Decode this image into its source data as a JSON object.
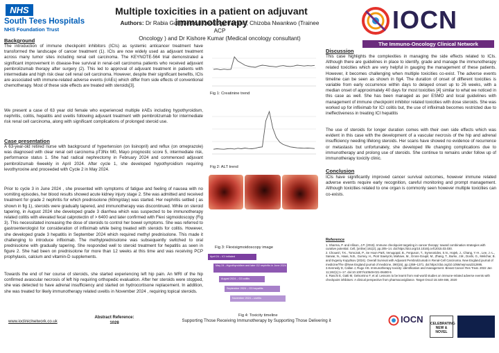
{
  "header": {
    "nhs_logo": "NHS",
    "org_name": "South Tees Hospitals",
    "org_sub": "NHS Foundation Trust",
    "title": "Multiple toxicities in a patient on adjuvant immunotherapy",
    "authors_label": "Authors:",
    "authors_line1": " Dr Rabia Gul (Medical oncology trainee),  Chizoba Nwankwo  (Trainee ACP",
    "authors_line2": "Oncology ) and Dr Kishore Kumar (Medical oncology consultant)",
    "iocn_word": "IOCN",
    "iocn_tagline": "The Immuno-Oncology Clinical Network"
  },
  "background": {
    "heading": "Background",
    "para1": "The introduction of immune checkpoint inhibitors (ICIs) as systemic anticancer treatment have transformed the landscape of cancer treatment (1). ICIs are now widely used as adjuvant treatment across many tumor sites including renal cell carcinoma. The KEYNOTE-564 trial demonstrated a significant improvement in disease-free survival in renal-cell carcinoma patients who received adjuvant pembrolizumab therapy after surgery (2). This led to approval of adjuvant treatment in patients with intermediate and high risk clear cell renal cell carcinoma. However, despite their significant benefits, ICIs are associated with immune-related adverse events (irAEs) which differ from side effects of conventional chemotherapy. Most of these side effects are treated with steroids[3].",
    "para2": "We present a case of 63 year old female who experienced multiple irAEs including hypothyroidism, nephritis, colitis, hepatitis and uveitis following adjuvant treatment with pembrolizumab for intermediate risk renal cell carcinoma, along with significant complications of prolonged steroid use."
  },
  "case": {
    "heading": "Case presentation",
    "para1": "A 63-year-old retired nurse with background of hypertension (on lisinopril) and reflux (on omeprazole) was diagnosed with clear renal cell carcinoma pT3Nx M0, Mayo prognostic score 5, intermediate risk, performance status 1. She had  radical nephrectomy in February 2024 and commenced  adjuvant pembrolizumab 6weekly in  April 2024. After cycle 1,  she developed hypothyroidism requiring levothyroxine and proceeded with Cycle 2 in May 2024.",
    "para2": "Prior to cycle 3 in June 2024 , she presented with symptoms of fatigue and feeling of nausea with no  vomiting episodes, her blood results  showed acute kidney injury stage 2. She was admitted and received treatment for grade 2 nephritis for which prednisolone (60mg/day) was started. Her nephritis settled ( as shown in fig 1), steroids were gradually tapered, and immunotherapy was discontinued.  While on steroid tapering, in August 2024 she developed grade 3 diarrhea which was suspected  to be immunotherapy related colitis with elevated fecal calprotectin of > 6400 and later confirmed with Flexi sigmoidoscopy  (Fig 3). This necessitated increasing the dose of steroids to control her bowel symptoms. She was referred to gastroenterologist for consideration of  infliximab while being treated with steroids  for colitis. However, she developed grade 3  hepatitis in September 2024 which required methyl prednisolone. This made it challenging to introduce infliximab. The methylprednisolone  was subsequently switched to oral prednisolone with gradually tapering. She responded well to steroid treatment for hepatitis as seen in figure 2.  She had been on prednisolone for more than 12 weeks at this time and was receiving PCP prophylaxis, calcium and vitamin-D supplements.",
    "para3": "Towards the end of her course of steroids, she started experiencing left hip pain. An  MRI of the hip confirmed avascular necrosis of left hip requiring orthopedic evaluation.  After her steroids were stopped, she was detected to have adrenal insufficiency and started on hydrocortisone replacement. In addition, she was treated for likely  immunotherapy related uveitis in November 2024 , requiring topical steroids."
  },
  "figures": {
    "fig1_caption": "Fig 1: Creatinine trend",
    "fig2_caption": "Fig 2: ALT trend",
    "fig3_caption": "Fig 3: Flexisigmoidoscopy image",
    "fig4_caption": "Fig 4: Toxicity timeline",
    "timeline": [
      "April 24 – ICI initiated",
      "May 24 –Hypothyroidism and later G2 nephritis in June 2024",
      "August 2024 – G3 colitis",
      "September 2024 – G3 hepatitis",
      "November 2024 – uveitis"
    ]
  },
  "discussion": {
    "heading": "Discussion",
    "para1": "This case highlights the complexities in managing the side effects related to ICIs. Although there are guidelines in place to identify, grade and manage the immunotherapy related toxicities which are very helpful in gauging the management of these patients. However, it becomes challenging when multiple toxicities  co-exist.  The adverse events timeline can be seen as shown in fig4. The duration of onset of different toxicities is variable from early occurrence within days to delayed onset up to 26 weeks, with a median onset of approximately 40 days for most toxicities  [4] similar to what we noticed in this case as well. She has been managed as per ESMO and local guidelines with management of immune checkpoint inhibitor related toxicities with dose steroids. She was worked up for infliximab for ICI colitis but, the use of infliximab becomes restricted due to ineffectiveness  in treating ICI hepatitis",
    "para2": "The use of steroids for longer duration comes with their own side effects which was evident in this case with the development of a vascular necrosis of the hip and adrenal insufficiency needing lifelong steroids. Her scans have showed no evidence of recurrence or metastasis but unfortunately, she developed life changing complications due to immunotherapy and prolong use of steroids.  She continue to  remains under follow up of immunotherapy toxicity clinic."
  },
  "conclusion": {
    "heading": "Conclusion",
    "para1": "ICIs have significantly improved cancer survival outcomes, however immune related adverse events require early recognition,  careful monitoring and prompt management. Although toxicities related to one organ is commonly seen however multiple toxicities can co-exists."
  },
  "references": {
    "heading": "Reference",
    "items": [
      "1. Sharma, P. and Allison, J.P. (2015). Immune checkpoint targeting in cancer therapy: toward combination strategies with curative potential. Cell, [online] 161(2), pp.205–14. doi:https://doi.org/10.1016/j.cell.2015.03.030.",
      "2. Choueiri, T.K., Tomczak, P., Se Hoon Park, Venugopal, B., Ferguson, T., Symeonides, S.N., Hajek, J., Chang, Y.-H., Lee, J.-L., Sarwar, N., Haas, N.B., Gurney, H., Piotr Sawrycki, Mahave, M., Gross-Goupil, M., Zhang, T., Burke, J.M., Doshi, G., Melichar, B. and Evgeniy Kopyltsov (2024). Overall Survival with Adjuvant Pembrolizumab in Renal-Cell Carcinoma. New England journal of medicine/The @New England journal of medicine, 390(15), pp.1359–1371. doi:https://doi.org/10.1056/nejmoa2312695.",
      "3.Kennedy  D, Callan J, Rugo HS. Immunotherapy toxicity: identification and management. Breast Cancer Res Treat. 2022 Jan 11;192(1):1–17. doi:10.1007/s10549-021-06480-5",
      "4. Raschi E, Gatti M, Gelsomino F, et al: Lessons to be learnt from real-world studies on immune-related adverse events with checkpoint inhibitors: A clinical perspective from pharma­covigilance. Target Oncol 15:449-466, 2020"
    ]
  },
  "footer": {
    "url": "www.iocliniclnetwork.co.uk",
    "abstract_label": "Abstract Reference:",
    "abstract_number": "1028",
    "tagline": "Supporting Those Receiving Immunotherapy by Supporting Those Delivering it",
    "iocn_word": "IOCN",
    "nn_text": "CELEBRATING NEW & NOVEL"
  },
  "chart_data": [
    {
      "type": "line",
      "title": "",
      "series": [
        {
          "values": [
            80,
            82,
            78,
            81,
            79,
            80,
            140,
            120,
            110,
            100,
            95,
            92,
            90,
            96,
            100,
            98,
            95,
            94,
            92,
            96,
            98,
            95,
            94,
            96,
            100,
            98,
            96,
            98,
            97,
            99
          ]
        }
      ]
    },
    {
      "type": "line",
      "title": "",
      "series": [
        {
          "values": [
            20,
            22,
            21,
            20,
            22,
            23,
            21,
            24,
            22,
            25,
            23,
            22,
            24,
            28,
            30,
            140,
            180,
            110,
            70,
            50,
            40,
            35,
            30,
            28,
            26,
            25,
            24,
            25,
            24,
            23
          ]
        }
      ]
    }
  ],
  "colors": {
    "nhs_blue": "#005eb8",
    "iocn_purple": "#6b2c7d",
    "iocn_navy": "#2b2352",
    "timeline_purple": "#7b3fa0",
    "timeline_light": "#a98fc8"
  }
}
